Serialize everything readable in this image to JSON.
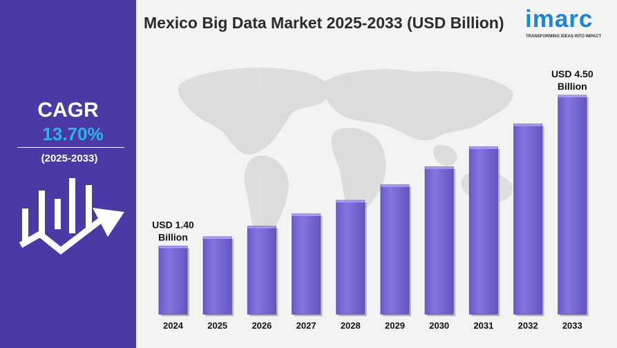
{
  "title": "Mexico Big Data Market 2025-2033 (USD Billion)",
  "logo": {
    "word": "imarc",
    "tagline": "TRANSFORMING IDEAS INTO IMPACT"
  },
  "cagr": {
    "label": "CAGR",
    "value": "13.70%",
    "period": "(2025-2033)"
  },
  "colors": {
    "panel": "#4b3aa6",
    "accent": "#2bb3f0",
    "bar": "#7b6cd8",
    "background": "#f3f3f3"
  },
  "icons": [
    "bar-chart-growth-icon",
    "world-map-background"
  ],
  "chart_data": {
    "type": "bar",
    "title": "Mexico Big Data Market 2025-2033 (USD Billion)",
    "xlabel": "",
    "ylabel": "",
    "categories": [
      "2024",
      "2025",
      "2026",
      "2027",
      "2028",
      "2029",
      "2030",
      "2031",
      "2032",
      "2033"
    ],
    "values": [
      1.4,
      1.59,
      1.81,
      2.06,
      2.34,
      2.66,
      3.03,
      3.44,
      3.91,
      4.5
    ],
    "ylim": [
      0,
      4.5
    ],
    "grid": false,
    "annotations": [
      {
        "category": "2024",
        "line1": "USD 1.40",
        "line2": "Billion"
      },
      {
        "category": "2033",
        "line1": "USD 4.50",
        "line2": "Billion"
      }
    ]
  }
}
